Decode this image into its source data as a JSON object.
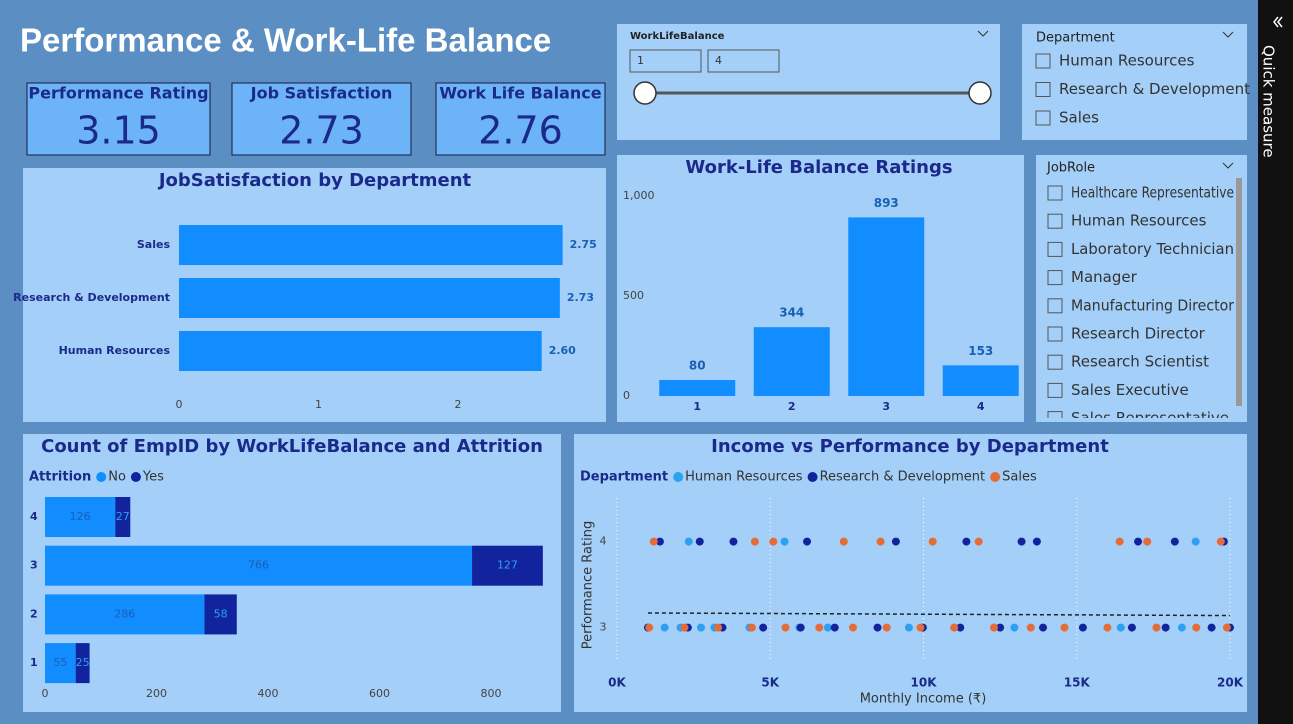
{
  "header": {
    "title": "Performance & Work-Life Balance"
  },
  "cards": [
    {
      "label": "Performance Rating",
      "value": 3.15
    },
    {
      "label": "Job Satisfaction",
      "value": 2.73
    },
    {
      "label": "Work Life Balance",
      "value": 2.76
    }
  ],
  "slicers": [
    {
      "title": "WorkLifeBalance",
      "range": [
        1,
        4
      ]
    },
    {
      "title": "Department",
      "items": [
        "Human Resources",
        "Research & Development",
        "Sales"
      ]
    },
    {
      "title": "JobRole",
      "items": [
        "Healthcare Representative",
        "Human Resources",
        "Laboratory Technician",
        "Manager",
        "Manufacturing Director",
        "Research Director",
        "Research Scientist",
        "Sales Executive",
        "Sales Representative"
      ]
    }
  ],
  "side_panel": {
    "label": "Quick measure"
  },
  "chart_data": [
    {
      "type": "hbar",
      "title": "JobSatisfaction by Department",
      "categories": [
        "Sales",
        "Research & Development",
        "Human Resources"
      ],
      "values": [
        2.75,
        2.73,
        2.6
      ],
      "value_labels": [
        "2.75",
        "2.73",
        "2.60"
      ],
      "color": "#118dff",
      "xlim": [
        0,
        3
      ],
      "xticks": [
        0,
        1,
        2
      ]
    },
    {
      "type": "bar",
      "title": "Work-Life Balance Ratings",
      "categories": [
        "1",
        "2",
        "3",
        "4"
      ],
      "values": [
        80,
        344,
        893,
        153
      ],
      "color": "#118dff",
      "ylim": [
        0,
        1000
      ],
      "yticks": [
        0,
        500,
        {
          "value": 1000,
          "label": "1,000"
        }
      ]
    },
    {
      "type": "stacked_hbar",
      "title": "Count of EmpID by WorkLifeBalance and Attrition",
      "legend_title": "Attrition",
      "categories": [
        "4",
        "3",
        "2",
        "1"
      ],
      "series": [
        {
          "name": "No",
          "color": "#118dff",
          "values": [
            126,
            766,
            286,
            55
          ]
        },
        {
          "name": "Yes",
          "color": "#12239e",
          "values": [
            27,
            127,
            58,
            25
          ]
        }
      ],
      "xlim": [
        0,
        900
      ],
      "xticks": [
        0,
        200,
        400,
        600,
        800
      ]
    },
    {
      "type": "scatter",
      "title": "Income vs Performance by Department",
      "legend_title": "Department",
      "x_label": "Monthly Income (₹)",
      "y_label": "Performance Rating",
      "series": [
        {
          "name": "Human Resources",
          "color": "#2ea0f2",
          "x": [
            1555,
            2073,
            2741,
            3180,
            4323,
            5950,
            6880,
            9525,
            12965,
            16437,
            18430,
            2342,
            5467,
            18880
          ],
          "values": [
            3,
            3,
            3,
            3,
            3,
            3,
            3,
            3,
            3,
            3,
            3,
            4,
            4,
            4
          ]
        },
        {
          "name": "Research & Development",
          "color": "#12239e",
          "x": [
            1009,
            2313,
            3441,
            4768,
            5993,
            7104,
            8500,
            9980,
            11200,
            12500,
            13900,
            15200,
            16800,
            17900,
            19400,
            19999,
            1400,
            2700,
            3800,
            6200,
            9100,
            11400,
            13200,
            13700,
            17000,
            18200,
            19800
          ],
          "values": [
            3,
            3,
            3,
            3,
            3,
            3,
            3,
            3,
            3,
            3,
            3,
            3,
            3,
            3,
            3,
            3,
            4,
            4,
            4,
            4,
            4,
            4,
            4,
            4,
            4,
            4,
            4
          ]
        },
        {
          "name": "Sales",
          "color": "#e66c37",
          "x": [
            1052,
            2200,
            3300,
            4400,
            5500,
            6600,
            7700,
            8800,
            9900,
            11000,
            12300,
            13500,
            14600,
            16000,
            17600,
            18900,
            19900,
            1200,
            4500,
            5100,
            7400,
            8600,
            10300,
            11800,
            16400,
            17300,
            19700
          ],
          "values": [
            3,
            3,
            3,
            3,
            3,
            3,
            3,
            3,
            3,
            3,
            3,
            3,
            3,
            3,
            3,
            3,
            3,
            4,
            4,
            4,
            4,
            4,
            4,
            4,
            4,
            4,
            4
          ]
        }
      ],
      "trendline": {
        "x": [
          1009,
          19999
        ],
        "values": [
          3.17,
          3.14
        ]
      },
      "xlim": [
        0,
        20000
      ],
      "xticks": [
        {
          "value": 0,
          "label": "0K"
        },
        {
          "value": 5000,
          "label": "5K"
        },
        {
          "value": 10000,
          "label": "10K"
        },
        {
          "value": 15000,
          "label": "15K"
        },
        {
          "value": 20000,
          "label": "20K"
        }
      ],
      "ylim": [
        2.6,
        4.6
      ],
      "yticks": [
        3,
        4
      ],
      "grid": true
    }
  ]
}
